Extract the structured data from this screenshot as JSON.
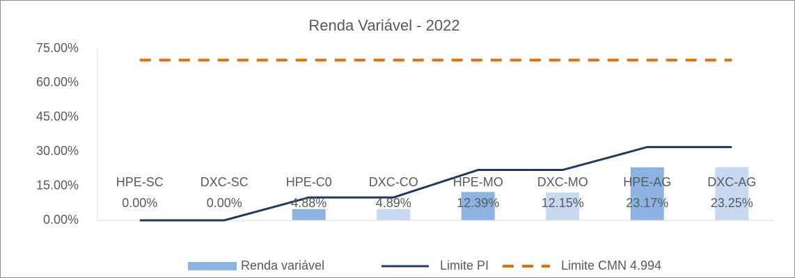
{
  "chart_data": {
    "type": "bar",
    "title": "Renda Variável - 2022",
    "categories": [
      "HPE-SC",
      "DXC-SC",
      "HPE-C0",
      "DXC-CO",
      "HPE-MO",
      "DXC-MO",
      "HPE-AG",
      "DXC-AG"
    ],
    "ylim": [
      0,
      75
    ],
    "yticks": [
      {
        "value": 0,
        "label": "0.00%"
      },
      {
        "value": 15,
        "label": "15.00%"
      },
      {
        "value": 30,
        "label": "30.00%"
      },
      {
        "value": 45,
        "label": "45.00%"
      },
      {
        "value": 60,
        "label": "60.00%"
      },
      {
        "value": 75,
        "label": "75.00%"
      }
    ],
    "grid": false,
    "series": [
      {
        "name": "Renda variável",
        "type": "bar",
        "color": "#8db3e2",
        "colors": [
          "#8db3e2",
          "#c6d9f1",
          "#8db3e2",
          "#c6d9f1",
          "#8db3e2",
          "#c6d9f1",
          "#8db3e2",
          "#c6d9f1"
        ],
        "values": [
          0,
          0,
          4.88,
          4.89,
          12.39,
          12.15,
          23.17,
          23.25
        ],
        "value_labels": [
          "0.00%",
          "0.00%",
          "4.88%",
          "4.89%",
          "12.39%",
          "12.15%",
          "23.17%",
          "23.25%"
        ]
      },
      {
        "name": "Limite PI",
        "type": "line",
        "color": "#1f3864",
        "values": [
          0,
          0,
          10,
          10,
          22,
          22,
          32,
          32
        ]
      },
      {
        "name": "Limite CMN 4.994",
        "type": "line",
        "color": "#e46c0a",
        "dashed": true,
        "values": [
          70,
          70,
          70,
          70,
          70,
          70,
          70,
          70
        ]
      }
    ]
  }
}
